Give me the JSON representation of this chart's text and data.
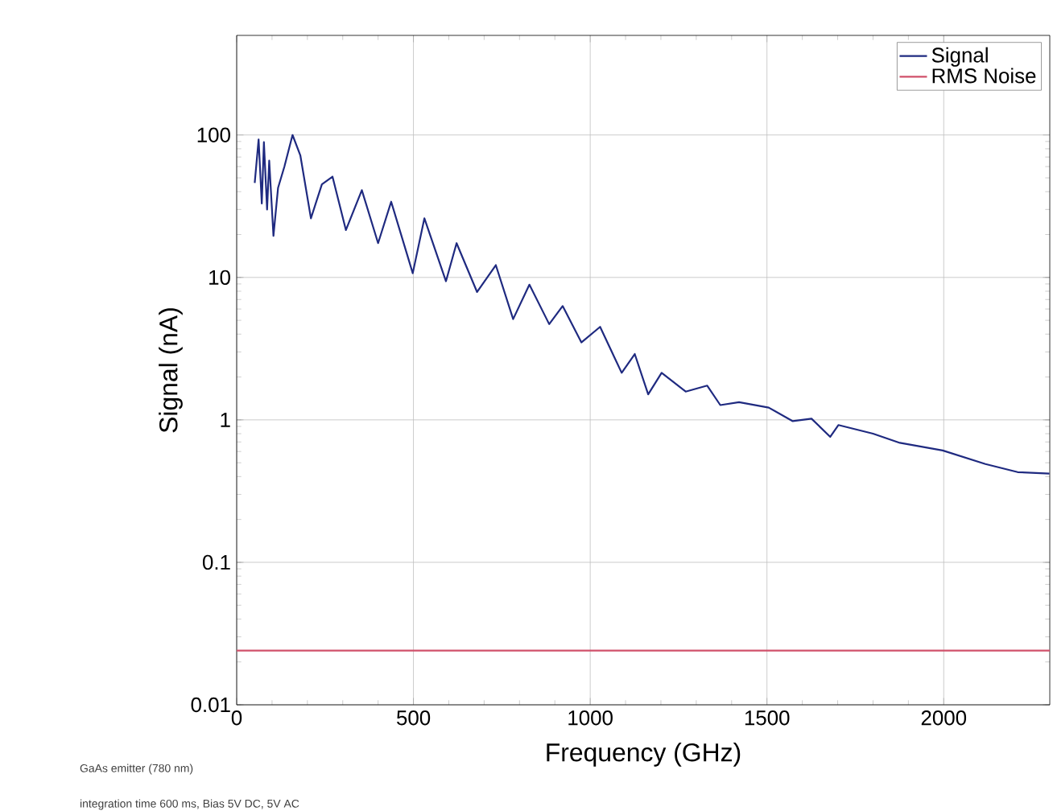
{
  "chart_data": {
    "type": "line",
    "xlabel": "Frequency (GHz)",
    "ylabel": "Signal (nA)",
    "xlim": [
      0,
      2300
    ],
    "ylim": [
      0.01,
      500
    ],
    "xticks": [
      0,
      500,
      1000,
      1500,
      2000
    ],
    "yticks": [
      0.01,
      0.1,
      1,
      10,
      100
    ],
    "log": "y",
    "grid": true,
    "legend": "top right",
    "annotations": [
      "GaAs emitter (780 nm)",
      "integration time 600 ms, Bias 5V DC, 5V AC"
    ],
    "series": [
      {
        "name": "Signal",
        "color": "#1f2a80",
        "x": [
          51,
          62,
          71,
          77,
          86,
          92,
          104,
          117,
          135,
          158,
          180,
          210,
          241,
          271,
          309,
          354,
          400,
          437,
          498,
          531,
          592,
          622,
          680,
          733,
          782,
          828,
          884,
          922,
          975,
          1028,
          1089,
          1126,
          1164,
          1202,
          1270,
          1331,
          1368,
          1421,
          1505,
          1573,
          1626,
          1679,
          1702,
          1800,
          1876,
          1997,
          2118,
          2209,
          2299
        ],
        "values": [
          46,
          93,
          33,
          89,
          30,
          66,
          19.6,
          42.5,
          60,
          100,
          72,
          26,
          45,
          51,
          21.5,
          41,
          17.4,
          34,
          10.7,
          26,
          9.4,
          17.4,
          7.9,
          12.2,
          5.1,
          8.9,
          4.7,
          6.3,
          3.5,
          4.5,
          2.14,
          2.9,
          1.51,
          2.14,
          1.58,
          1.74,
          1.27,
          1.33,
          1.22,
          0.98,
          1.02,
          0.76,
          0.92,
          0.8,
          0.69,
          0.61,
          0.49,
          0.43,
          0.42
        ]
      },
      {
        "name": "RMS Noise",
        "color": "#d0506a",
        "x": [
          0,
          2300
        ],
        "values": [
          0.024,
          0.024
        ]
      }
    ]
  }
}
